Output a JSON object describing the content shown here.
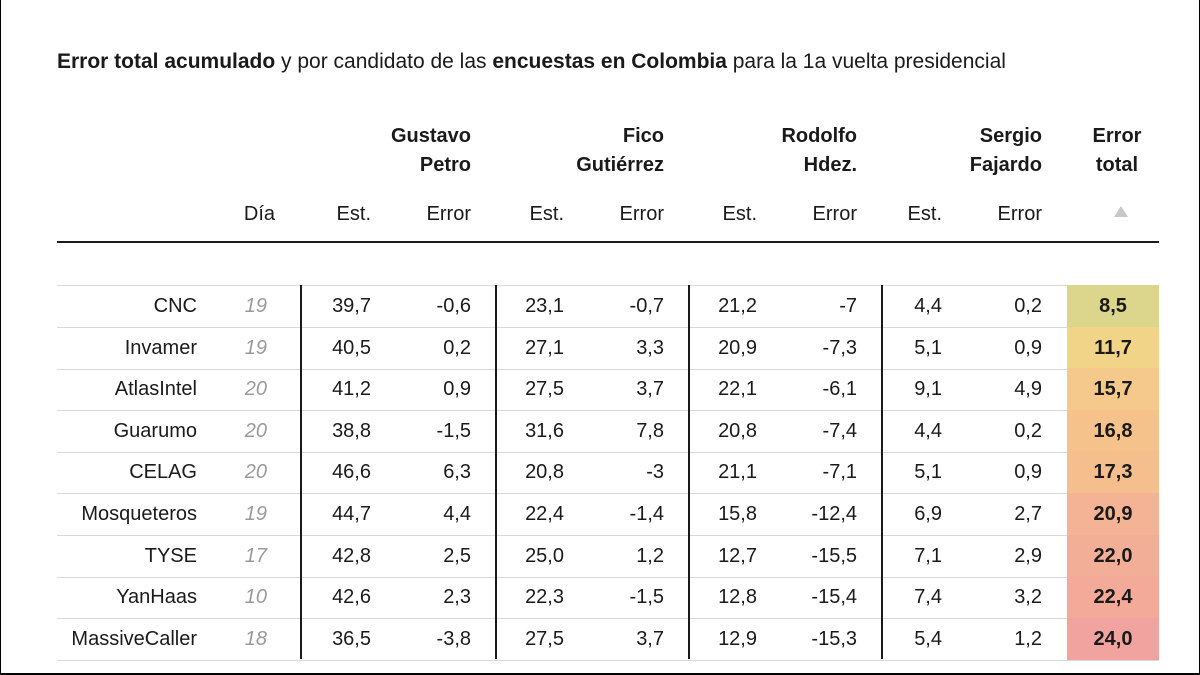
{
  "title": {
    "part1": "Error total acumulado",
    "part2": " y por candidato de las ",
    "part3": "encuestas en Colombia",
    "part4": " para la 1a vuelta presidencial"
  },
  "headers": {
    "candidates": [
      "Gustavo\nPetro",
      "Fico\nGutiérrez",
      "Rodolfo\nHdez.",
      "Sergio\nFajardo"
    ],
    "total": "Error\ntotal",
    "dia": "Día",
    "est": "Est.",
    "error": "Error"
  },
  "colors": {
    "total_low": "#d8d48a",
    "total_high": "#f2a4a4"
  },
  "chart_data": {
    "type": "table",
    "title": "Error total acumulado y por candidato de las encuestas en Colombia para la 1a vuelta presidencial",
    "columns": [
      "",
      "Día",
      "Gustavo Petro Est.",
      "Gustavo Petro Error",
      "Fico Gutiérrez Est.",
      "Fico Gutiérrez Error",
      "Rodolfo Hdez. Est.",
      "Rodolfo Hdez. Error",
      "Sergio Fajardo Est.",
      "Sergio Fajardo Error",
      "Error total"
    ],
    "sort": "Error total ascending",
    "rows": [
      {
        "pollster": "CNC",
        "dia": "19",
        "values": [
          "39,7",
          "-0,6",
          "23,1",
          "-0,7",
          "21,2",
          "-7",
          "4,4",
          "0,2"
        ],
        "total": "8,5",
        "total_color": "#dcd68c"
      },
      {
        "pollster": "Invamer",
        "dia": "19",
        "values": [
          "40,5",
          "0,2",
          "27,1",
          "3,3",
          "20,9",
          "-7,3",
          "5,1",
          "0,9"
        ],
        "total": "11,7",
        "total_color": "#f2d489"
      },
      {
        "pollster": "AtlasIntel",
        "dia": "20",
        "values": [
          "41,2",
          "0,9",
          "27,5",
          "3,7",
          "22,1",
          "-6,1",
          "9,1",
          "4,9"
        ],
        "total": "15,7",
        "total_color": "#f4c98b"
      },
      {
        "pollster": "Guarumo",
        "dia": "20",
        "values": [
          "38,8",
          "-1,5",
          "31,6",
          "7,8",
          "20,8",
          "-7,4",
          "4,4",
          "0,2"
        ],
        "total": "16,8",
        "total_color": "#f5c28c"
      },
      {
        "pollster": "CELAG",
        "dia": "20",
        "values": [
          "46,6",
          "6,3",
          "20,8",
          "-3",
          "21,1",
          "-7,1",
          "5,1",
          "0,9"
        ],
        "total": "17,3",
        "total_color": "#f5be8d"
      },
      {
        "pollster": "Mosqueteros",
        "dia": "19",
        "values": [
          "44,7",
          "4,4",
          "22,4",
          "-1,4",
          "15,8",
          "-12,4",
          "6,9",
          "2,7"
        ],
        "total": "20,9",
        "total_color": "#f3b394"
      },
      {
        "pollster": "TYSE",
        "dia": "17",
        "values": [
          "42,8",
          "2,5",
          "25,0",
          "1,2",
          "12,7",
          "-15,5",
          "7,1",
          "2,9"
        ],
        "total": "22,0",
        "total_color": "#f3ae97"
      },
      {
        "pollster": "YanHaas",
        "dia": "10",
        "values": [
          "42,6",
          "2,3",
          "22,3",
          "-1,5",
          "12,8",
          "-15,4",
          "7,4",
          "3,2"
        ],
        "total": "22,4",
        "total_color": "#f3aa99"
      },
      {
        "pollster": "MassiveCaller",
        "dia": "18",
        "values": [
          "36,5",
          "-3,8",
          "27,5",
          "3,7",
          "12,9",
          "-15,3",
          "5,4",
          "1,2"
        ],
        "total": "24,0",
        "total_color": "#f1a3a0"
      }
    ]
  }
}
